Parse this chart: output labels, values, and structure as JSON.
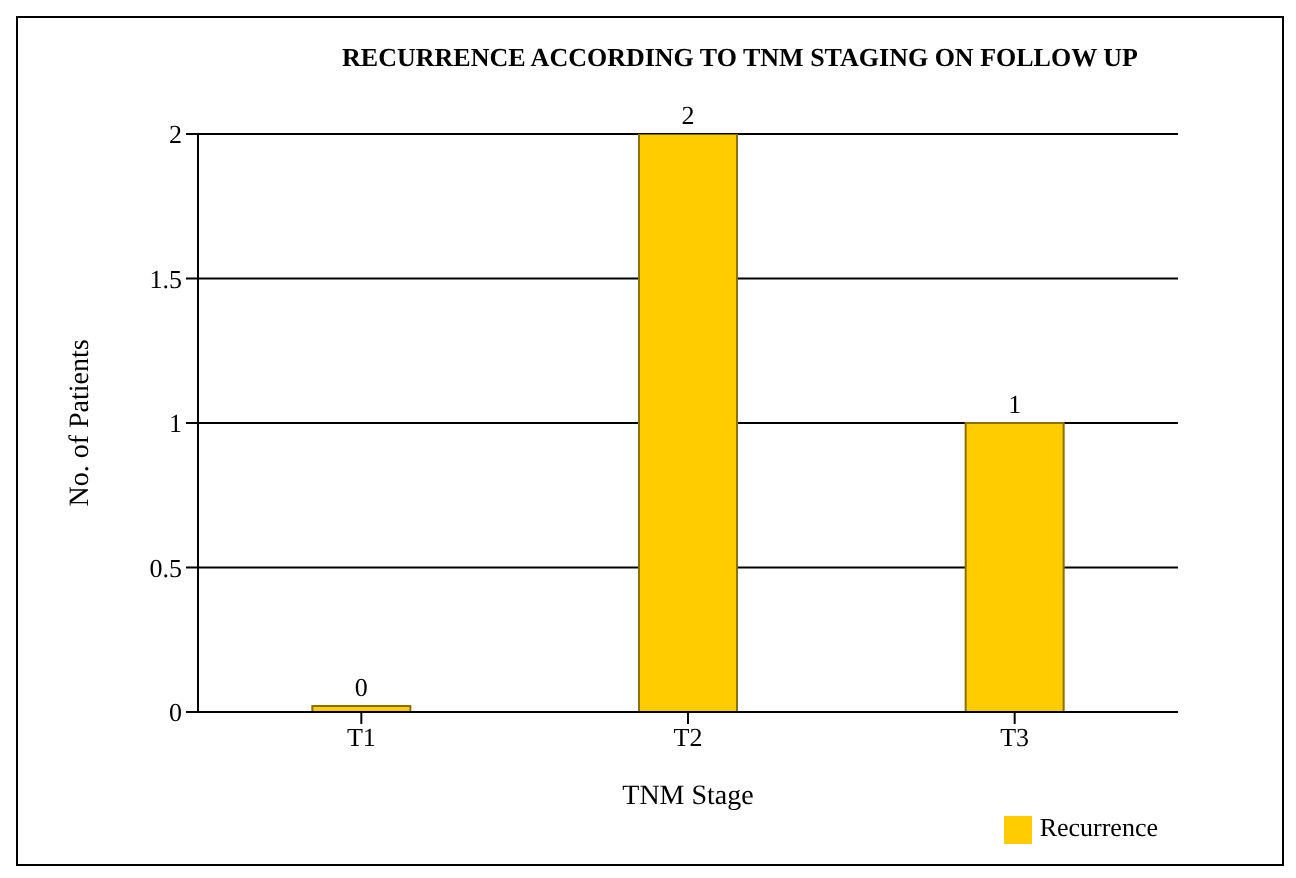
{
  "chart_data": {
    "type": "bar",
    "title": "RECURRENCE  ACCORDING TO TNM STAGING ON FOLLOW UP",
    "xlabel": "TNM Stage",
    "ylabel": "No. of Patients",
    "categories": [
      "T1",
      "T2",
      "T3"
    ],
    "series": [
      {
        "name": "Recurrence",
        "color": "#ffcc00",
        "values": [
          0,
          2,
          1
        ]
      }
    ],
    "ylim": [
      0,
      2
    ],
    "yticks": [
      0,
      0.5,
      1,
      1.5,
      2
    ],
    "grid": "y",
    "legend": "bottom right",
    "data_labels": true
  }
}
